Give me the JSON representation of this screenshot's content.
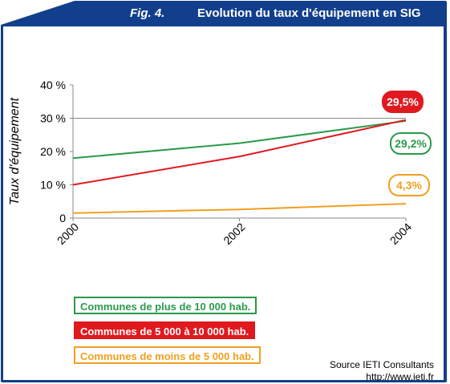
{
  "title": {
    "fig_label": "Fig. 4.",
    "text": "Evolution du taux d'équipement en SIG"
  },
  "chart_data": {
    "type": "line",
    "x": [
      "2000",
      "2002",
      "2004"
    ],
    "xlabel": "",
    "ylabel": "Taux d'équipement",
    "ylim": [
      0,
      40
    ],
    "yticks": [
      "0",
      "10 %",
      "20 %",
      "30 %",
      "40 %"
    ],
    "grid": false,
    "reference_line": 30,
    "legend_position": "bottom-left",
    "series": [
      {
        "name": "Communes de plus de 10 000 hab.",
        "color": "#2a9a4a",
        "values": [
          18,
          22.5,
          29.2
        ],
        "end_label": "29,2%"
      },
      {
        "name": "Communes de 5 000 à 10 000 hab.",
        "color": "#e0191f",
        "values": [
          10,
          18.5,
          29.5
        ],
        "end_label": "29,5%"
      },
      {
        "name": "Communes de moins de 5 000 hab.",
        "color": "#f0a020",
        "values": [
          1.5,
          2.6,
          4.3
        ],
        "end_label": "4,3%"
      }
    ]
  },
  "source": {
    "line1": "Source IETI Consultants",
    "line2": "http://www.ieti.fr"
  }
}
